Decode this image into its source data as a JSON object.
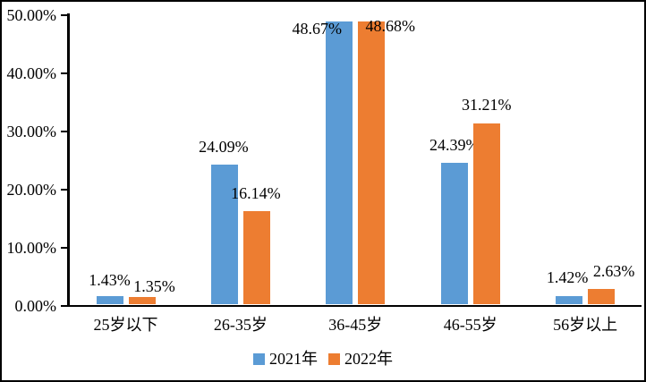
{
  "chart_data": {
    "type": "bar",
    "title": "",
    "categories": [
      "25岁以下",
      "26-35岁",
      "36-45岁",
      "46-55岁",
      "56岁以上"
    ],
    "series": [
      {
        "name": "2021年",
        "color": "#5B9BD5",
        "values": [
          1.43,
          24.09,
          48.67,
          24.39,
          1.42
        ],
        "labels": [
          "1.43%",
          "24.09%",
          "48.67%",
          "24.39%",
          "1.42%"
        ]
      },
      {
        "name": "2022年",
        "color": "#ED7D31",
        "values": [
          1.35,
          16.14,
          48.68,
          31.21,
          2.63
        ],
        "labels": [
          "1.35%",
          "16.14%",
          "48.68%",
          "31.21%",
          "2.63%"
        ]
      }
    ],
    "y_axis": {
      "ticks": [
        "0.00%",
        "10.00%",
        "20.00%",
        "30.00%",
        "40.00%",
        "50.00%"
      ],
      "min": 0,
      "max": 50,
      "unit": "%"
    },
    "grid": false,
    "legend_position": "bottom",
    "axis_color": "#000000",
    "background_color": "#ffffff"
  }
}
